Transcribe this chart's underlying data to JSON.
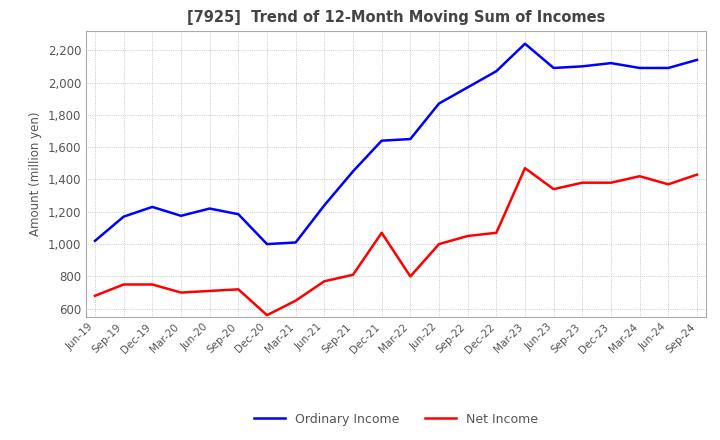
{
  "title": "[7925]  Trend of 12-Month Moving Sum of Incomes",
  "ylabel": "Amount (million yen)",
  "ylim": [
    550,
    2320
  ],
  "yticks": [
    600,
    800,
    1000,
    1200,
    1400,
    1600,
    1800,
    2000,
    2200
  ],
  "x_labels": [
    "Jun-19",
    "Sep-19",
    "Dec-19",
    "Mar-20",
    "Jun-20",
    "Sep-20",
    "Dec-20",
    "Mar-21",
    "Jun-21",
    "Sep-21",
    "Dec-21",
    "Mar-22",
    "Jun-22",
    "Sep-22",
    "Dec-22",
    "Mar-23",
    "Jun-23",
    "Sep-23",
    "Dec-23",
    "Mar-24",
    "Jun-24",
    "Sep-24"
  ],
  "ordinary_income": [
    1020,
    1170,
    1230,
    1175,
    1220,
    1185,
    1000,
    1010,
    1240,
    1450,
    1640,
    1650,
    1870,
    1970,
    2070,
    2240,
    2090,
    2100,
    2120,
    2090,
    2090,
    2140
  ],
  "net_income": [
    680,
    750,
    750,
    700,
    710,
    720,
    560,
    650,
    770,
    810,
    1070,
    800,
    1000,
    1050,
    1070,
    1470,
    1340,
    1380,
    1380,
    1420,
    1370,
    1430
  ],
  "ordinary_color": "#0000ff",
  "net_color": "#ff0000",
  "background_color": "#ffffff",
  "grid_color": "#aaaaaa",
  "title_color": "#444444",
  "line_width": 1.8
}
